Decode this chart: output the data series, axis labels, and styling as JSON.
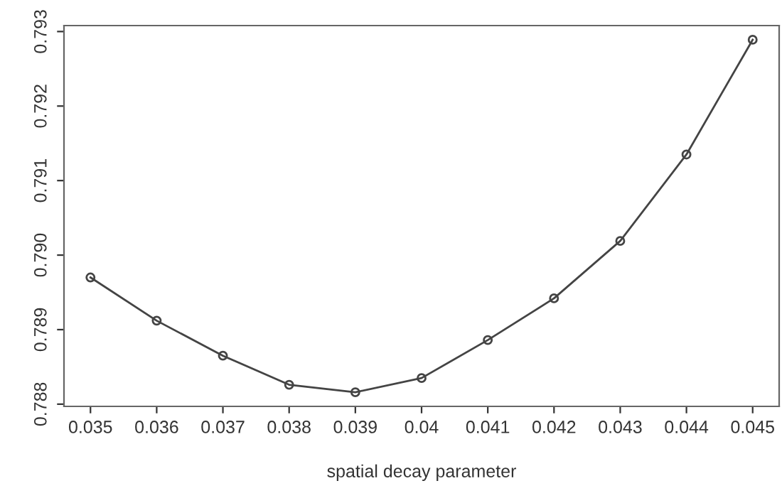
{
  "chart_data": {
    "type": "line",
    "xlabel": "spatial decay parameter",
    "x": [
      0.035,
      0.036,
      0.037,
      0.038,
      0.039,
      0.04,
      0.041,
      0.042,
      0.043,
      0.044,
      0.045
    ],
    "series": [
      {
        "color": "#444444",
        "values": [
          0.7897,
          0.78912,
          0.78865,
          0.78826,
          0.78816,
          0.78835,
          0.78886,
          0.78942,
          0.79019,
          0.79135,
          0.79289
        ]
      }
    ],
    "xlim": [
      0.0346,
      0.0454
    ],
    "ylim": [
      0.78797,
      0.79308
    ],
    "xticks": [
      0.035,
      0.036,
      0.037,
      0.038,
      0.039,
      0.04,
      0.041,
      0.042,
      0.043,
      0.044,
      0.045
    ],
    "yticks": [
      {
        "value": 0.788,
        "label": "0.788"
      },
      {
        "value": 0.789,
        "label": "0.789"
      },
      {
        "value": 0.79,
        "label": "0.790"
      },
      {
        "value": 0.791,
        "label": "0.791"
      },
      {
        "value": 0.792,
        "label": "0.792"
      },
      {
        "value": 0.793,
        "label": "0.793"
      }
    ],
    "marker": "circle",
    "line_style": "solid",
    "grid": false
  }
}
